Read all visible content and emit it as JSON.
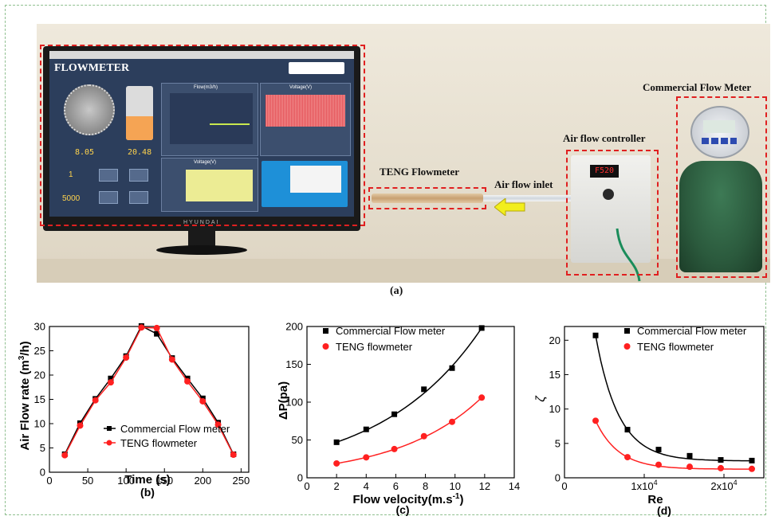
{
  "photo": {
    "app_title": "FLOWMETER",
    "monitor_brand": "HYUNDAI",
    "readout_1": "8.05",
    "readout_2": "20.48",
    "sensitivity_value": "1",
    "sampling_value": "5000",
    "panel_flow": "Flow(m3/h)",
    "panel_voltage_top": "Voltage(V)",
    "panel_voltage_bottom": "Voltage(V)",
    "controller_display": "F520",
    "labels": {
      "commercial": "Commercial Flow Meter",
      "controller": "Air flow controller",
      "teng": "TENG Flowmeter",
      "inlet": "Air flow inlet"
    },
    "caption": "(a)"
  },
  "chart_data": [
    {
      "type": "line",
      "xlabel": "Time (s)",
      "ylabel": "Air Flow rate (m3/h)",
      "xlim": [
        0,
        260
      ],
      "ylim": [
        0,
        30
      ],
      "xticks": [
        "0",
        "50",
        "100",
        "150",
        "200",
        "250"
      ],
      "yticks": [
        "0",
        "5",
        "10",
        "15",
        "20",
        "25",
        "30"
      ],
      "legend": "bottom-left",
      "series": [
        {
          "name": "Commercial Flow meter",
          "color": "#000000",
          "marker": "square",
          "x": [
            20,
            40,
            60,
            80,
            100,
            120,
            140,
            160,
            180,
            200,
            220,
            240
          ],
          "y": [
            3.7,
            10.1,
            15.1,
            19.3,
            23.9,
            30.1,
            28.5,
            23.5,
            19.3,
            15.2,
            10.2,
            3.7
          ]
        },
        {
          "name": "TENG flowmeter",
          "color": "#ff2020",
          "marker": "circle",
          "x": [
            20,
            40,
            60,
            80,
            100,
            120,
            140,
            160,
            180,
            200,
            220,
            240
          ],
          "y": [
            3.5,
            9.6,
            14.8,
            18.5,
            23.6,
            29.8,
            29.7,
            23.2,
            18.7,
            14.6,
            9.8,
            3.6
          ]
        }
      ],
      "caption": "(b)"
    },
    {
      "type": "scatter",
      "xlabel": "Flow velocity(m.s-1)",
      "ylabel": "ΔP(pa)",
      "xlim": [
        0,
        14
      ],
      "ylim": [
        0,
        200
      ],
      "xticks": [
        "0",
        "2",
        "4",
        "6",
        "8",
        "10",
        "12",
        "14"
      ],
      "yticks": [
        "0",
        "50",
        "100",
        "150",
        "200"
      ],
      "legend": "top-left",
      "series": [
        {
          "name": "Commercial Flow meter",
          "color": "#000000",
          "marker": "square",
          "x": [
            2,
            4,
            5.9,
            7.9,
            9.8,
            11.8
          ],
          "y": [
            47,
            64,
            84,
            117,
            145,
            198
          ]
        },
        {
          "name": "TENG flowmeter",
          "color": "#ff2020",
          "marker": "circle",
          "x": [
            2,
            4,
            5.9,
            7.9,
            9.8,
            11.8
          ],
          "y": [
            19,
            27,
            38,
            55,
            74,
            106
          ]
        }
      ],
      "caption": "(c)"
    },
    {
      "type": "scatter",
      "xlabel": "Re",
      "ylabel": "ζ",
      "xlim": [
        0,
        25000
      ],
      "ylim": [
        0,
        22
      ],
      "xticks": [
        "0",
        "1x10^4",
        "2x10^4"
      ],
      "yticks": [
        "0",
        "5",
        "10",
        "15",
        "20"
      ],
      "legend": "top-right",
      "series": [
        {
          "name": "Commercial Flow meter",
          "color": "#000000",
          "marker": "square",
          "x": [
            3900,
            7900,
            11800,
            15700,
            19600,
            23500
          ],
          "y": [
            20.7,
            7.0,
            4.1,
            3.2,
            2.6,
            2.5
          ]
        },
        {
          "name": "TENG flowmeter",
          "color": "#ff2020",
          "marker": "circle",
          "x": [
            3900,
            7900,
            11800,
            15700,
            19600,
            23500
          ],
          "y": [
            8.3,
            3.0,
            1.9,
            1.6,
            1.4,
            1.3
          ]
        }
      ],
      "caption": "(d)"
    }
  ]
}
